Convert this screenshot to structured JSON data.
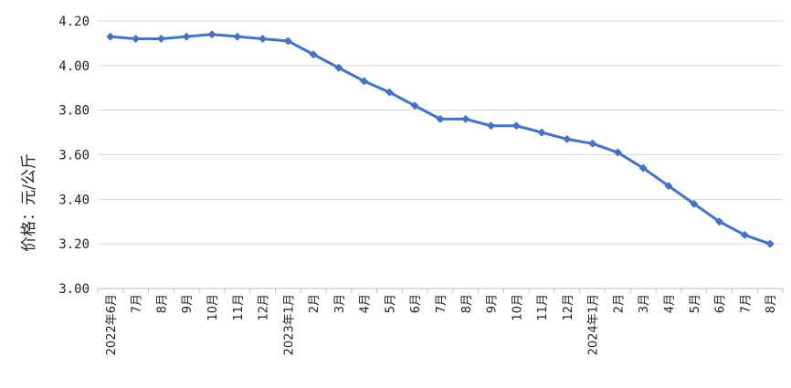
{
  "chart_data": {
    "type": "line",
    "title": "",
    "xlabel": "",
    "ylabel": "价格：元/公斤",
    "ylim": [
      3.0,
      4.2
    ],
    "yticks": [
      "3.00",
      "3.20",
      "3.40",
      "3.60",
      "3.80",
      "4.00",
      "4.20"
    ],
    "grid": true,
    "legend": "none",
    "line_color": "#4472C4",
    "categories": [
      "2022年6月",
      "7月",
      "8月",
      "9月",
      "10月",
      "11月",
      "12月",
      "2023年1月",
      "2月",
      "3月",
      "4月",
      "5月",
      "6月",
      "7月",
      "8月",
      "9月",
      "10月",
      "11月",
      "12月",
      "2024年1月",
      "2月",
      "3月",
      "4月",
      "5月",
      "6月",
      "7月",
      "8月"
    ],
    "series": [
      {
        "values": [
          4.13,
          4.12,
          4.12,
          4.13,
          4.14,
          4.13,
          4.12,
          4.11,
          4.05,
          3.99,
          3.93,
          3.88,
          3.82,
          3.76,
          3.76,
          3.73,
          3.73,
          3.7,
          3.67,
          3.65,
          3.61,
          3.54,
          3.46,
          3.38,
          3.3,
          3.24,
          3.2
        ]
      }
    ]
  }
}
